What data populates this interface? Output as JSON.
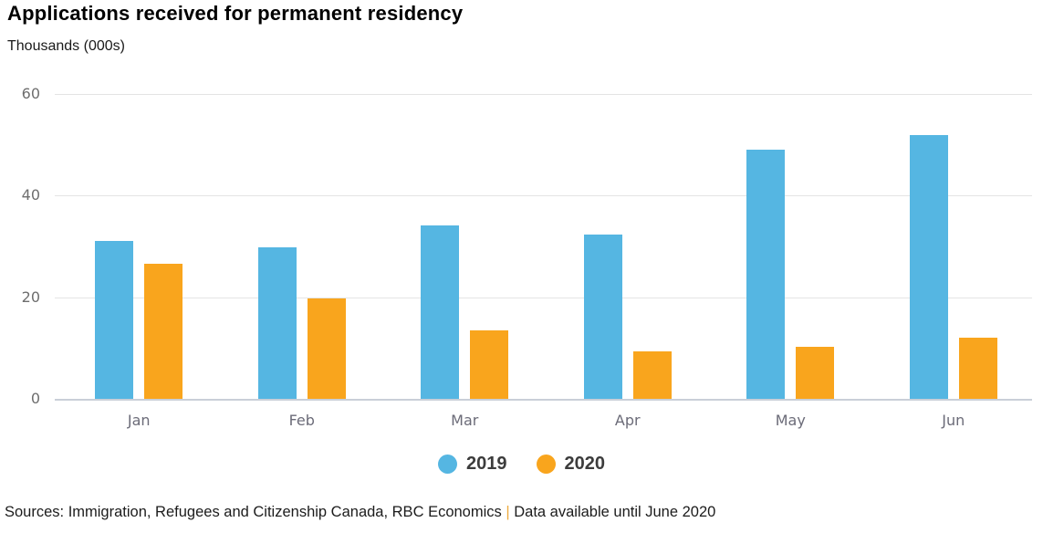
{
  "title": "Applications received for permanent residency",
  "subtitle": "Thousands (000s)",
  "colors": {
    "series_2019": "#55b6e2",
    "series_2020": "#f9a51d",
    "footer_separator": "#edaa3d",
    "axis_text": "#6e6e6e",
    "gridline": "#e4e4e4",
    "baseline": "#c9cfd8"
  },
  "legend": {
    "items": [
      {
        "label": "2019",
        "color": "#55b6e2"
      },
      {
        "label": "2020",
        "color": "#f9a51d"
      }
    ]
  },
  "footer": {
    "sources": "Sources: Immigration, Refugees and Citizenship Canada, RBC Economics",
    "separator": "|",
    "note": "Data available until June 2020"
  },
  "chart_data": {
    "type": "bar",
    "title": "Applications received for permanent residency",
    "subtitle": "Thousands (000s)",
    "xlabel": "",
    "ylabel": "Thousands (000s)",
    "categories": [
      "Jan",
      "Feb",
      "Mar",
      "Apr",
      "May",
      "Jun"
    ],
    "series": [
      {
        "name": "2019",
        "color": "#55b6e2",
        "values": [
          31.0,
          29.8,
          34.2,
          32.3,
          49.0,
          52.0
        ]
      },
      {
        "name": "2020",
        "color": "#f9a51d",
        "values": [
          26.5,
          19.8,
          13.4,
          9.3,
          10.3,
          12.0
        ]
      }
    ],
    "ylim": [
      0,
      60
    ],
    "yticks": [
      0,
      20,
      40,
      60
    ],
    "grid": true,
    "legend_position": "bottom-center"
  }
}
